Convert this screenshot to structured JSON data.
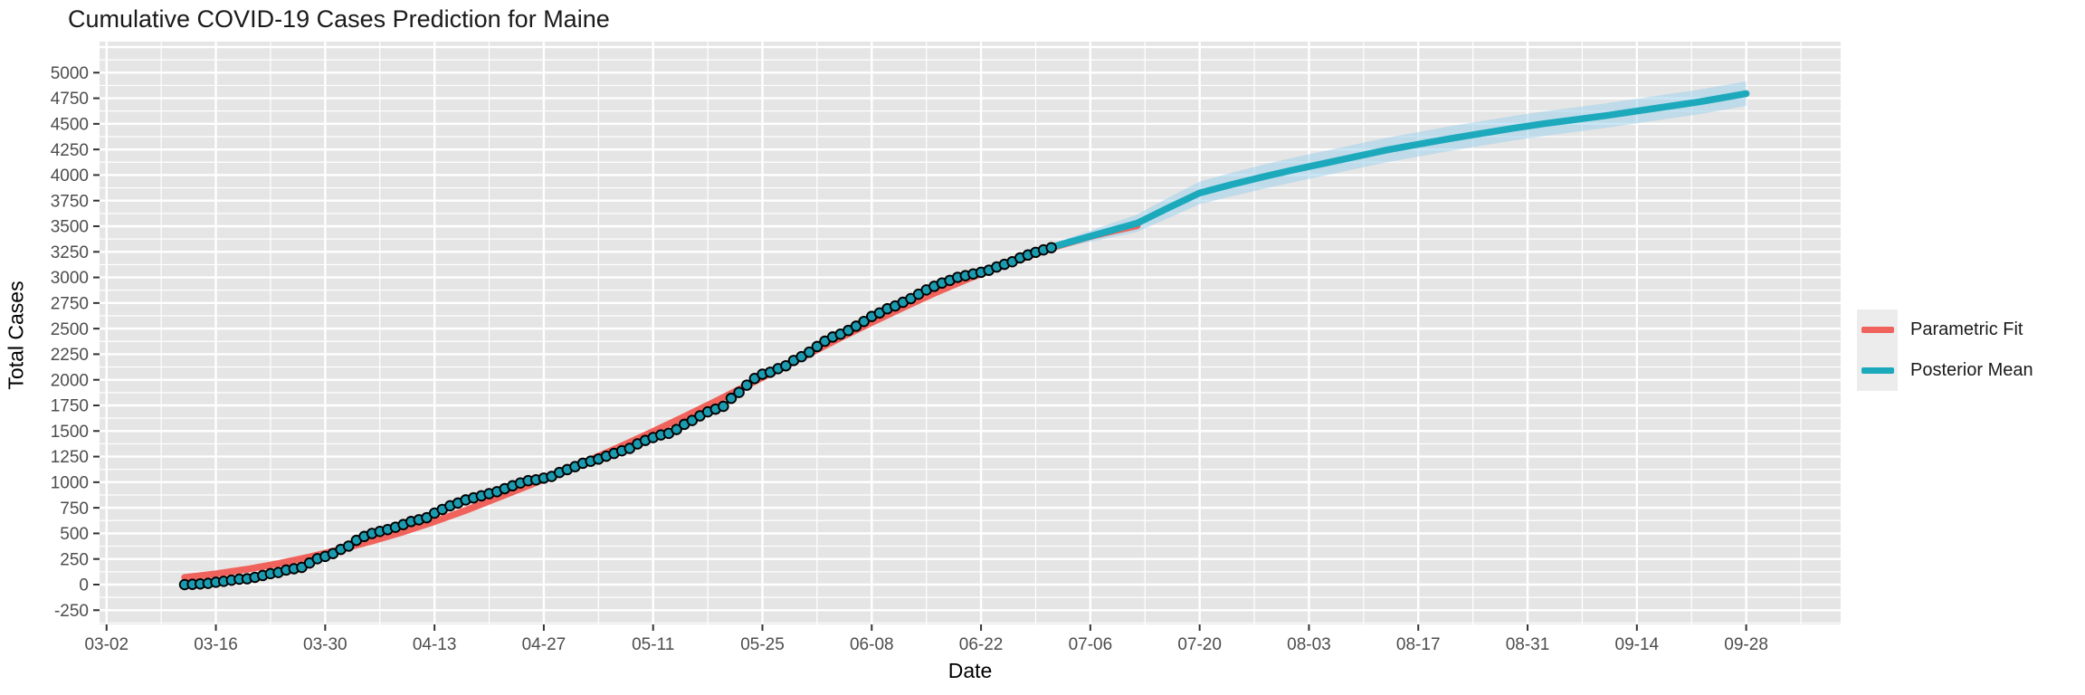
{
  "chart_data": {
    "type": "line",
    "title": "Cumulative COVID-19 Cases Prediction for Maine",
    "xlabel": "Date",
    "ylabel": "Total Cases",
    "legend_position": "right",
    "panel_bg": "#E5E5E5",
    "grid_color": "#FFFFFF",
    "tick_label_color": "#4D4D4D",
    "x_axis": {
      "tick_labels": [
        "03-02",
        "03-16",
        "03-30",
        "04-13",
        "04-27",
        "05-11",
        "05-25",
        "06-08",
        "06-22",
        "07-06",
        "07-20",
        "08-03",
        "08-17",
        "08-31",
        "09-14",
        "09-28"
      ],
      "tick_interval_days": 14
    },
    "y_axis": {
      "tick_labels": [
        "-250",
        "0",
        "250",
        "500",
        "750",
        "1000",
        "1250",
        "1500",
        "1750",
        "2000",
        "2250",
        "2500",
        "2750",
        "3000",
        "3250",
        "3500",
        "3750",
        "4000",
        "4250",
        "4500",
        "4750",
        "5000"
      ],
      "tick_values": [
        -250,
        0,
        250,
        500,
        750,
        1000,
        1250,
        1500,
        1750,
        2000,
        2250,
        2500,
        2750,
        3000,
        3250,
        3500,
        3750,
        4000,
        4250,
        4500,
        4750,
        5000
      ],
      "ylim": [
        -250,
        5000
      ],
      "tick_step": 250
    },
    "legend": [
      {
        "label": "Parametric Fit",
        "color": "#F0635C"
      },
      {
        "label": "Posterior Mean",
        "color": "#1CA9BC"
      }
    ],
    "series": [
      {
        "name": "Observed cumulative cases",
        "type": "scatter",
        "marker": {
          "fill": "#1B9BAF",
          "stroke": "#000000",
          "radius": 5.3
        },
        "start_date": "03-12",
        "frequency": "daily",
        "values": [
          0,
          3,
          7,
          12,
          23,
          32,
          43,
          53,
          57,
          71,
          89,
          107,
          118,
          142,
          155,
          168,
          211,
          253,
          275,
          303,
          344,
          376,
          432,
          470,
          499,
          519,
          537,
          560,
          586,
          616,
          633,
          653,
          698,
          734,
          770,
          796,
          827,
          847,
          867,
          888,
          907,
          937,
          965,
          992,
          1015,
          1023,
          1040,
          1056,
          1095,
          1123,
          1152,
          1185,
          1205,
          1226,
          1254,
          1281,
          1307,
          1330,
          1374,
          1408,
          1436,
          1462,
          1477,
          1515,
          1565,
          1603,
          1648,
          1687,
          1714,
          1741,
          1819,
          1877,
          1948,
          2013,
          2055,
          2074,
          2109,
          2137,
          2189,
          2226,
          2270,
          2325,
          2377,
          2418,
          2446,
          2482,
          2524,
          2570,
          2619,
          2653,
          2694,
          2721,
          2757,
          2793,
          2836,
          2878,
          2913,
          2945,
          2971,
          3001,
          3017,
          3034,
          3050,
          3070,
          3102,
          3128,
          3153,
          3191,
          3219,
          3245,
          3269,
          3290
        ]
      },
      {
        "name": "Parametric Fit",
        "type": "line",
        "color": "#F0635C",
        "width": 7.5,
        "dates": [
          "03-12",
          "03-16",
          "03-20",
          "03-24",
          "03-28",
          "04-01",
          "04-05",
          "04-09",
          "04-13",
          "04-17",
          "04-21",
          "04-25",
          "04-29",
          "05-03",
          "05-07",
          "05-11",
          "05-15",
          "05-19",
          "05-23",
          "05-27",
          "05-31",
          "06-04",
          "06-08",
          "06-12",
          "06-16",
          "06-20",
          "06-24",
          "06-28",
          "07-02",
          "07-06",
          "07-09",
          "07-12"
        ],
        "values": [
          70,
          105,
          150,
          205,
          270,
          345,
          425,
          515,
          615,
          725,
          845,
          965,
          1090,
          1220,
          1355,
          1495,
          1640,
          1790,
          1945,
          2100,
          2255,
          2410,
          2560,
          2705,
          2845,
          2975,
          3095,
          3205,
          3310,
          3400,
          3455,
          3505
        ]
      },
      {
        "name": "Posterior Mean",
        "type": "line",
        "color": "#1CA9BC",
        "width": 7.5,
        "ribbon_fill": "rgba(153,207,235,0.5)",
        "dates": [
          "06-28",
          "07-01",
          "07-04",
          "07-08",
          "07-12",
          "07-16",
          "07-20",
          "07-24",
          "07-28",
          "08-01",
          "08-05",
          "08-09",
          "08-13",
          "08-17",
          "08-21",
          "08-25",
          "08-29",
          "09-02",
          "09-06",
          "09-10",
          "09-14",
          "09-18",
          "09-22",
          "09-25",
          "09-28"
        ],
        "values": [
          3235,
          3295,
          3360,
          3445,
          3530,
          3680,
          3825,
          3905,
          3980,
          4050,
          4115,
          4180,
          4245,
          4300,
          4355,
          4405,
          4455,
          4500,
          4540,
          4580,
          4625,
          4670,
          4715,
          4755,
          4795
        ],
        "ribbon_lower": [
          3223,
          3265,
          3315,
          3380,
          3445,
          3580,
          3715,
          3790,
          3862,
          3930,
          3995,
          4060,
          4125,
          4180,
          4235,
          4285,
          4335,
          4380,
          4420,
          4460,
          4505,
          4550,
          4595,
          4635,
          4675
        ],
        "ribbon_upper": [
          3247,
          3325,
          3405,
          3510,
          3615,
          3780,
          3935,
          4020,
          4098,
          4170,
          4235,
          4300,
          4365,
          4420,
          4475,
          4525,
          4575,
          4620,
          4660,
          4700,
          4745,
          4790,
          4835,
          4875,
          4915
        ]
      }
    ]
  }
}
